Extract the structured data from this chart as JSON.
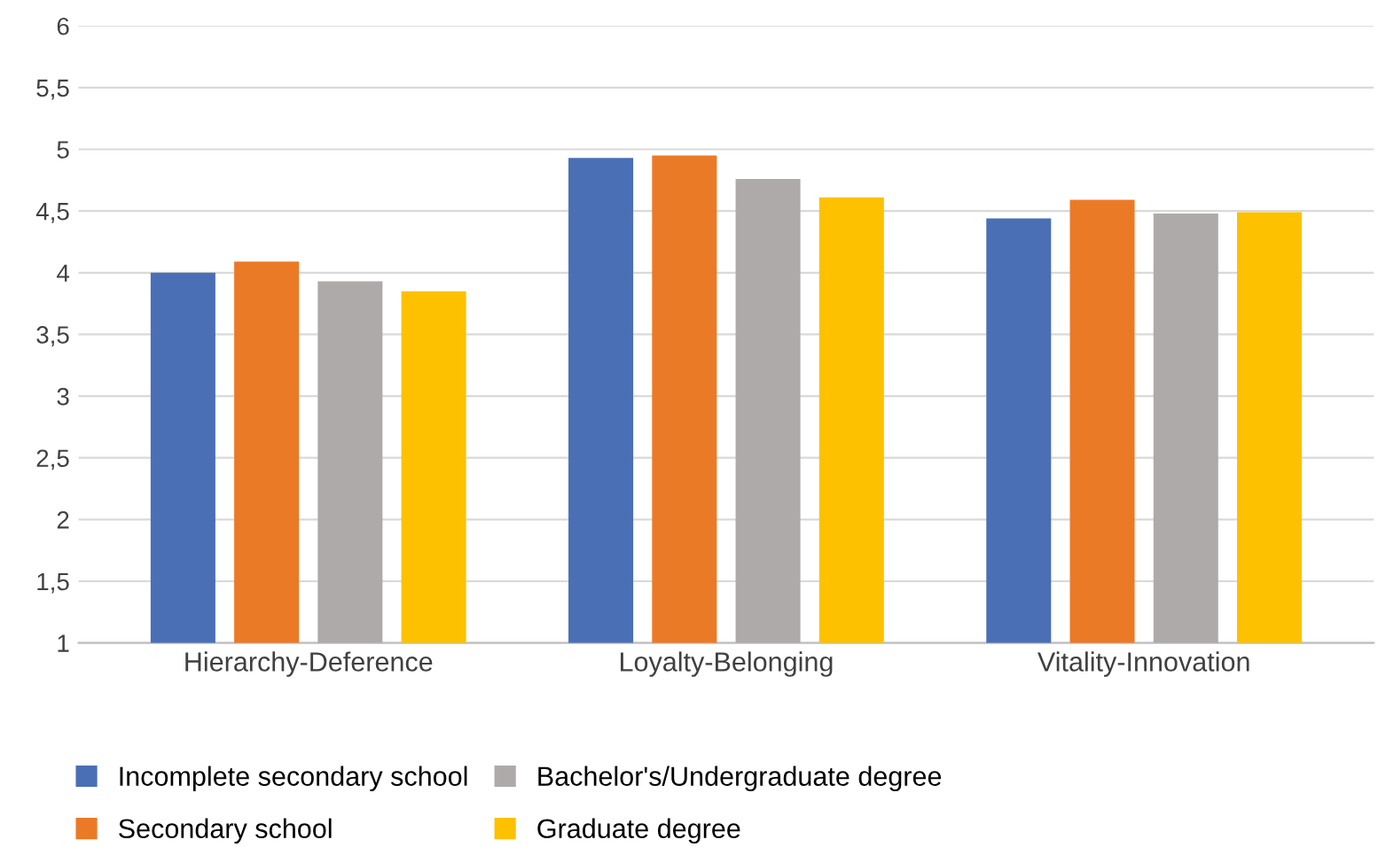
{
  "chart_data": {
    "type": "bar",
    "categories": [
      "Hierarchy-Deference",
      "Loyalty-Belonging",
      "Vitality-Innovation"
    ],
    "series": [
      {
        "name": "Incomplete secondary school",
        "color": "#4a6fb5",
        "values": [
          4.0,
          4.93,
          4.44
        ]
      },
      {
        "name": "Secondary school",
        "color": "#eb7a26",
        "values": [
          4.09,
          4.95,
          4.59
        ]
      },
      {
        "name": "Bachelor's/Undergraduate degree",
        "color": "#aeaaaa",
        "values": [
          3.93,
          4.76,
          4.48
        ]
      },
      {
        "name": "Graduate degree",
        "color": "#fdc100",
        "values": [
          3.85,
          4.61,
          4.49
        ]
      }
    ],
    "ylim": [
      1,
      6
    ],
    "yticks": [
      1,
      {
        "value": 1.5,
        "label": "1,5"
      },
      2,
      {
        "value": 2.5,
        "label": "2,5"
      },
      3,
      {
        "value": 3.5,
        "label": "3,5"
      },
      4,
      {
        "value": 4.5,
        "label": "4,5"
      },
      5,
      {
        "value": 5.5,
        "label": "5,5"
      },
      6
    ],
    "grid": "y",
    "legend": "bottom"
  }
}
